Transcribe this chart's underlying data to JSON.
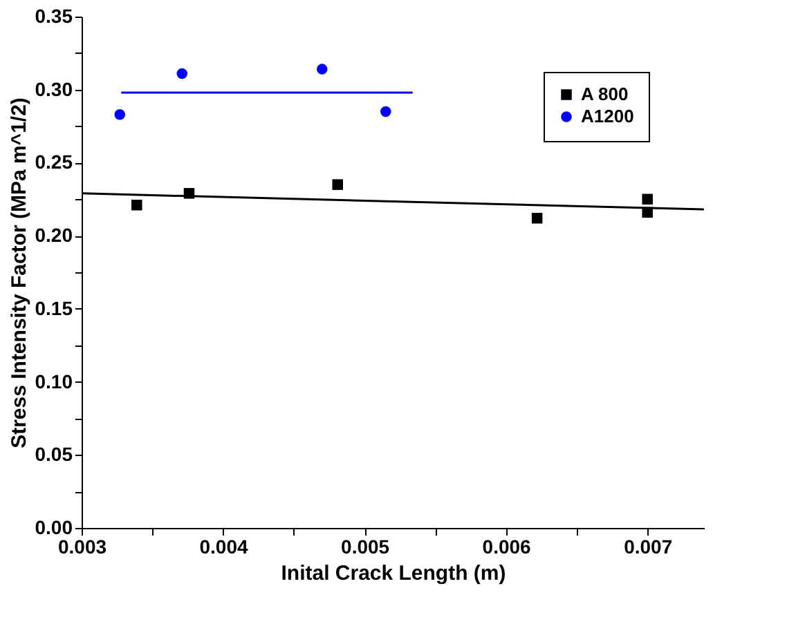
{
  "chart_data": {
    "type": "scatter",
    "xlabel": "Inital Crack Length (m)",
    "ylabel": "Stress Intensity Factor (MPa m^1/2)",
    "xlim": [
      0.003,
      0.0074
    ],
    "ylim": [
      0,
      0.35
    ],
    "xticks": [
      0.003,
      {
        "value": 0.0035,
        "label": null
      },
      0.004,
      {
        "value": 0.0045,
        "label": null
      },
      0.005,
      {
        "value": 0.0055,
        "label": null
      },
      0.006,
      {
        "value": 0.0065,
        "label": null
      },
      0.007
    ],
    "yticks": [
      {
        "value": 0,
        "label": "0.00"
      },
      {
        "value": 0.025,
        "label": null
      },
      0.05,
      {
        "value": 0.075,
        "label": null
      },
      {
        "value": 0.1,
        "label": "0.10"
      },
      {
        "value": 0.125,
        "label": null
      },
      0.15,
      {
        "value": 0.175,
        "label": null
      },
      {
        "value": 0.2,
        "label": "0.20"
      },
      {
        "value": 0.225,
        "label": null
      },
      0.25,
      {
        "value": 0.275,
        "label": null
      },
      {
        "value": 0.3,
        "label": "0.30"
      },
      {
        "value": 0.325,
        "label": null
      },
      0.35
    ],
    "grid": false,
    "legend": "top right",
    "series": [
      {
        "name": "A 800",
        "color": "#000000",
        "marker": "square",
        "x": [
          0.00339,
          0.00376,
          0.00481,
          0.00622,
          0.007,
          0.007
        ],
        "values": [
          0.221,
          0.229,
          0.235,
          0.212,
          0.225,
          0.216
        ]
      },
      {
        "name": "A1200",
        "color": "#0000ff",
        "marker": "circle",
        "x": [
          0.00327,
          0.00371,
          0.0047,
          0.00515
        ],
        "values": [
          0.283,
          0.311,
          0.314,
          0.285
        ]
      },
      {
        "type": "line",
        "color": "#000000",
        "x": [
          0.003,
          0.0074
        ],
        "values": [
          0.229,
          0.218
        ]
      },
      {
        "type": "line",
        "color": "#0000ff",
        "x": [
          0.00328,
          0.00534
        ],
        "values": [
          0.298,
          0.298
        ]
      }
    ]
  }
}
